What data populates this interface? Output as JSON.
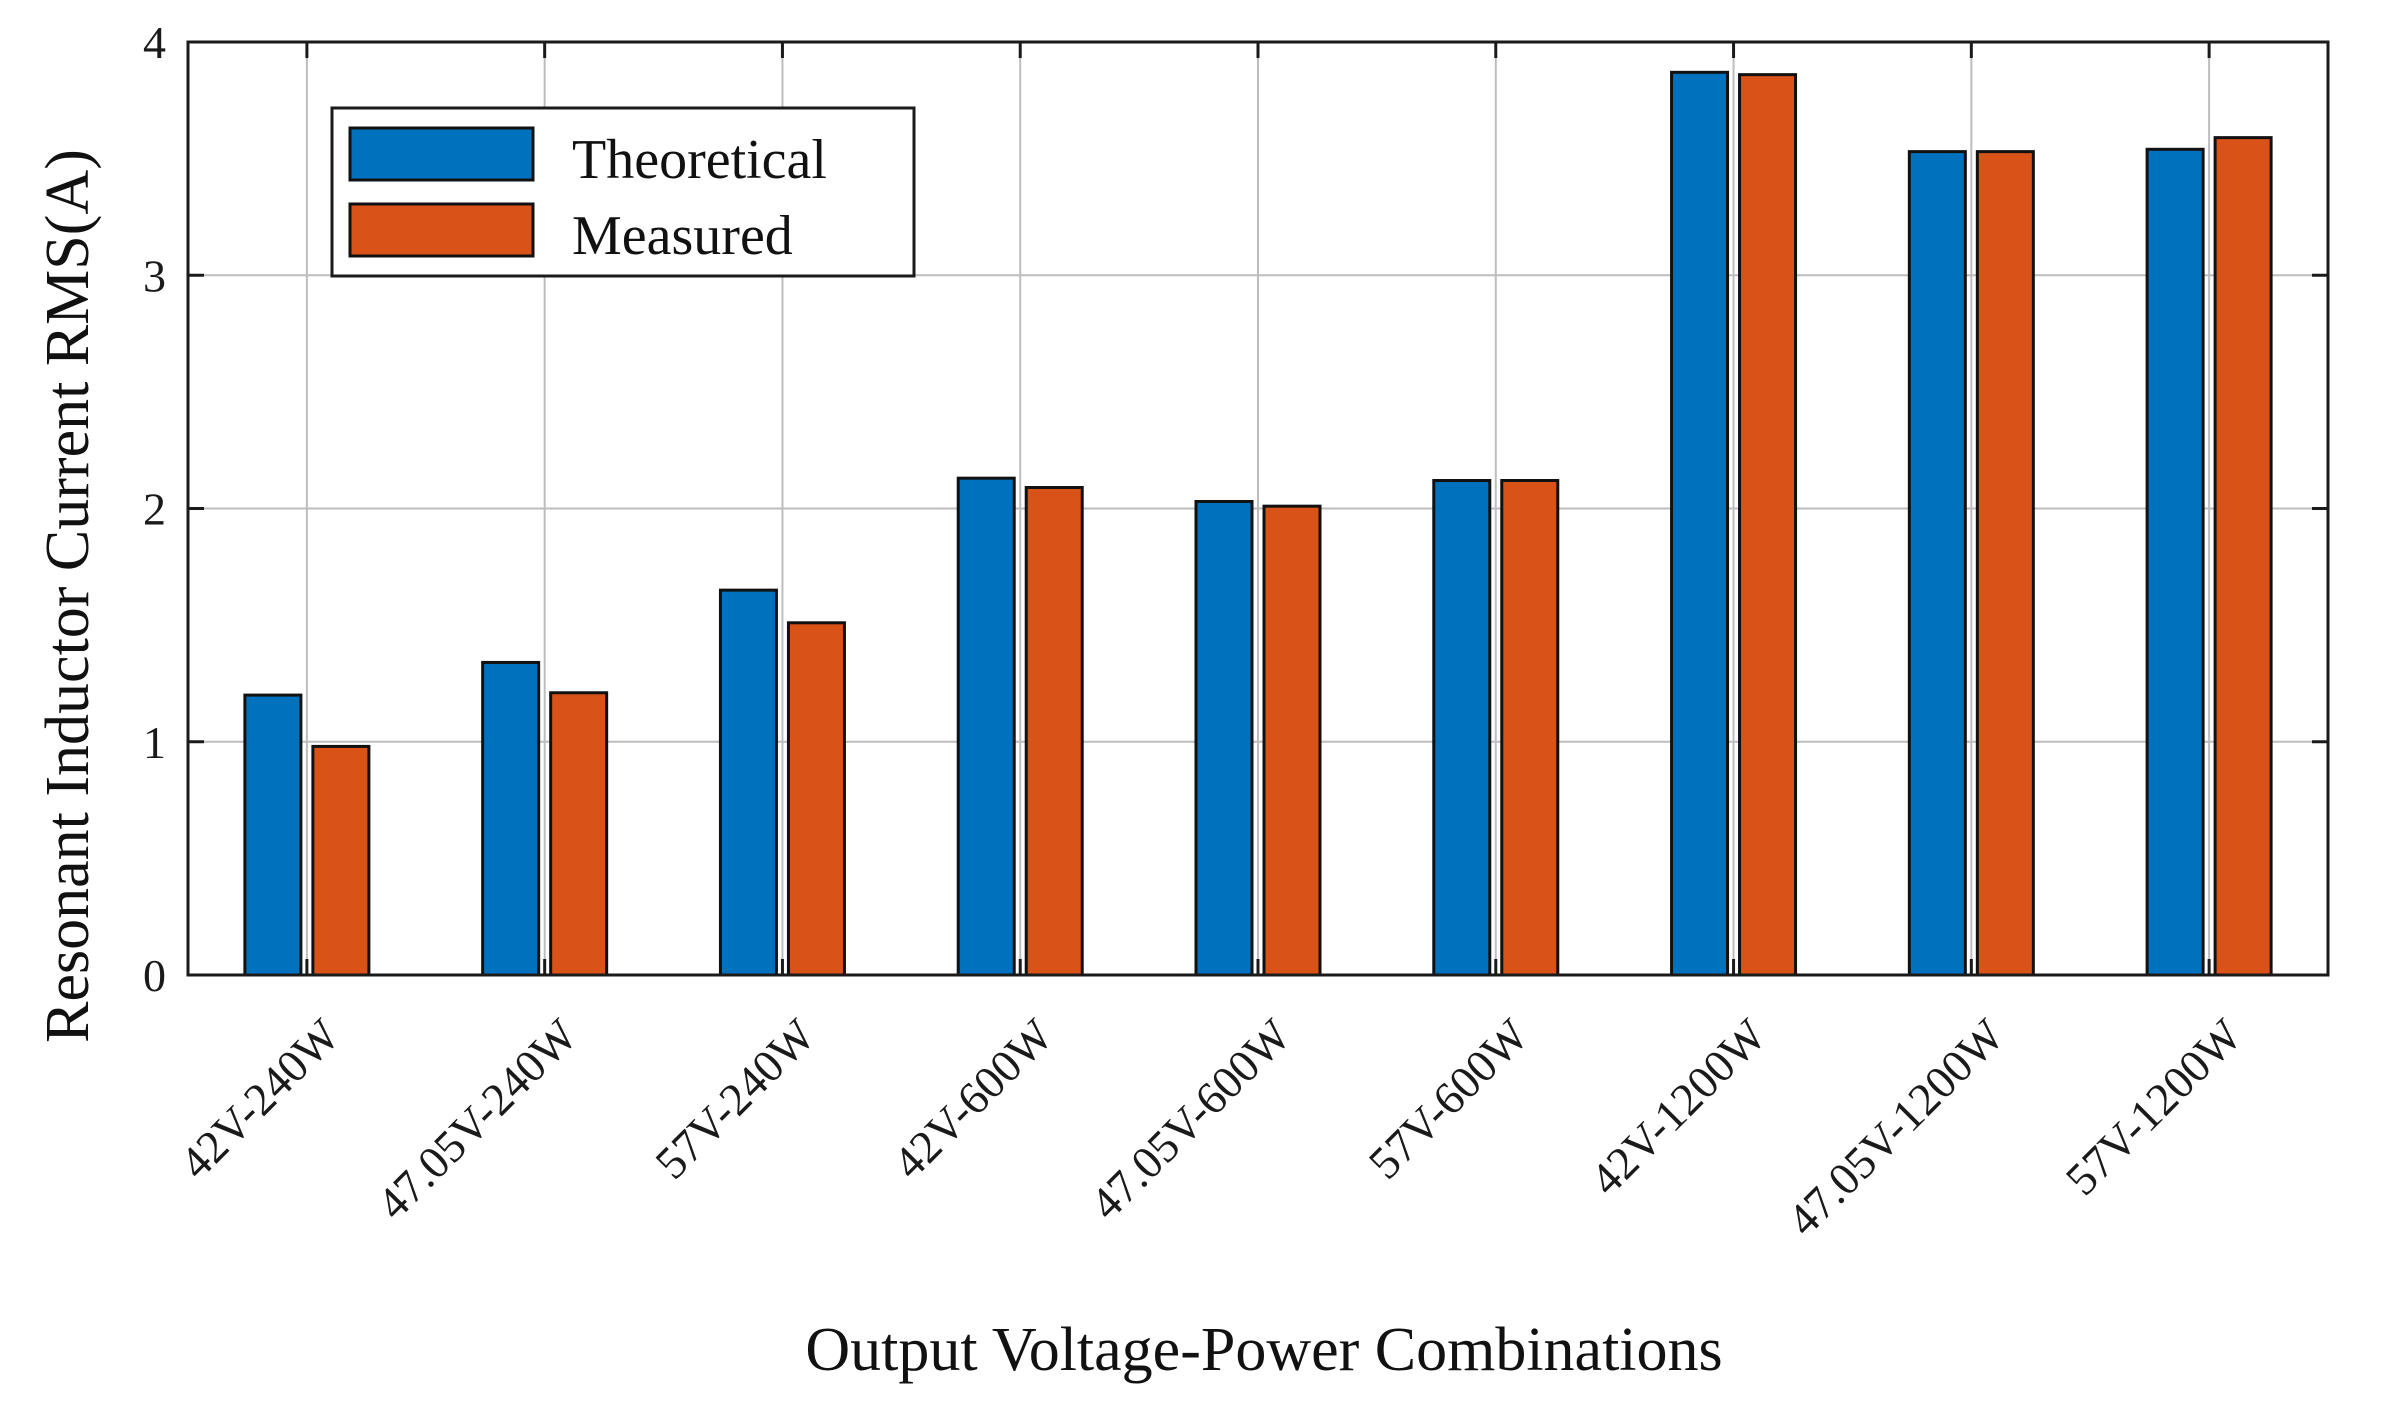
{
  "chart_data": {
    "type": "bar",
    "title": "",
    "xlabel": "Output Voltage-Power Combinations",
    "ylabel": "Resonant Inductor Current RMS(A)",
    "ylim": [
      0,
      4
    ],
    "yticks": [
      "0",
      "1",
      "2",
      "3",
      "4"
    ],
    "grid": true,
    "legend_position": "top-left",
    "categories": [
      "42V-240W",
      "47.05V-240W",
      "57V-240W",
      "42V-600W",
      "47.05V-600W",
      "57V-600W",
      "42V-1200W",
      "47.05V-1200W",
      "57V-1200W"
    ],
    "series": [
      {
        "name": "Theoretical",
        "color": "#0072BD",
        "values": [
          1.2,
          1.34,
          1.65,
          2.13,
          2.03,
          2.12,
          3.87,
          3.53,
          3.54
        ]
      },
      {
        "name": "Measured",
        "color": "#D95319",
        "values": [
          0.98,
          1.21,
          1.51,
          2.09,
          2.01,
          2.12,
          3.86,
          3.53,
          3.59
        ]
      }
    ]
  }
}
